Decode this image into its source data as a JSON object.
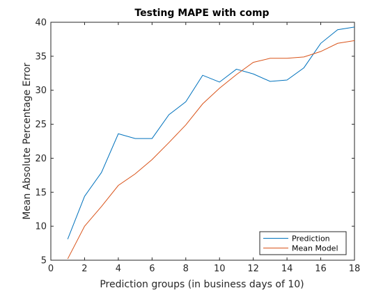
{
  "chart_data": {
    "type": "line",
    "title": "Testing MAPE with comp",
    "xlabel": "Prediction groups (in business days of 10)",
    "ylabel": "Mean Absolute Percentage Error",
    "xlim": [
      0,
      18
    ],
    "ylim": [
      5,
      40
    ],
    "xticks": [
      0,
      2,
      4,
      6,
      8,
      10,
      12,
      14,
      16,
      18
    ],
    "yticks": [
      5,
      10,
      15,
      20,
      25,
      30,
      35,
      40
    ],
    "grid": false,
    "legend_position": "bottom-right",
    "x": [
      1,
      2,
      3,
      4,
      5,
      6,
      7,
      8,
      9,
      10,
      11,
      12,
      13,
      14,
      15,
      16,
      17,
      18
    ],
    "series": [
      {
        "name": "Prediction",
        "color": "#0072bd",
        "values": [
          8.1,
          14.4,
          17.9,
          23.6,
          22.9,
          22.9,
          26.4,
          28.3,
          32.2,
          31.2,
          33.1,
          32.4,
          31.3,
          31.5,
          33.3,
          36.9,
          38.9,
          39.3
        ]
      },
      {
        "name": "Mean Model",
        "color": "#d95319",
        "values": [
          5.2,
          10.0,
          12.9,
          16.0,
          17.7,
          19.8,
          22.3,
          24.9,
          28.0,
          30.3,
          32.3,
          34.1,
          34.7,
          34.7,
          34.9,
          35.7,
          36.9,
          37.3
        ]
      }
    ]
  }
}
